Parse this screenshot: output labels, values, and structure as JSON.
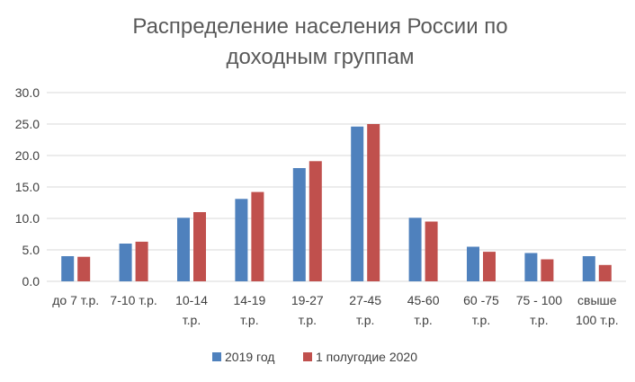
{
  "chart_data": {
    "type": "bar",
    "title_lines": [
      "Распределение населения России по",
      "доходным группам"
    ],
    "categories": [
      [
        "до 7 т.р."
      ],
      [
        "7-10 т.р."
      ],
      [
        "10-14",
        "т.р."
      ],
      [
        "14-19",
        "т.р."
      ],
      [
        "19-27",
        "т.р."
      ],
      [
        "27-45",
        "т.р."
      ],
      [
        "45-60",
        "т.р."
      ],
      [
        "60 -75",
        "т.р."
      ],
      [
        "75 - 100",
        "т.р."
      ],
      [
        "свыше",
        "100 т.р."
      ]
    ],
    "series": [
      {
        "name": "2019 год",
        "color": "#4f81bd",
        "values": [
          4.0,
          6.0,
          10.1,
          13.1,
          18.0,
          24.6,
          10.1,
          5.5,
          4.5,
          4.0
        ]
      },
      {
        "name": "1 полугодие 2020",
        "color": "#c0504d",
        "values": [
          3.9,
          6.3,
          11.0,
          14.2,
          19.1,
          25.0,
          9.5,
          4.7,
          3.5,
          2.6
        ]
      }
    ],
    "yticks": [
      "0.0",
      "5.0",
      "10.0",
      "15.0",
      "20.0",
      "25.0",
      "30.0"
    ],
    "ylim": [
      0,
      30
    ],
    "grid": true,
    "legend_position": "bottom"
  }
}
